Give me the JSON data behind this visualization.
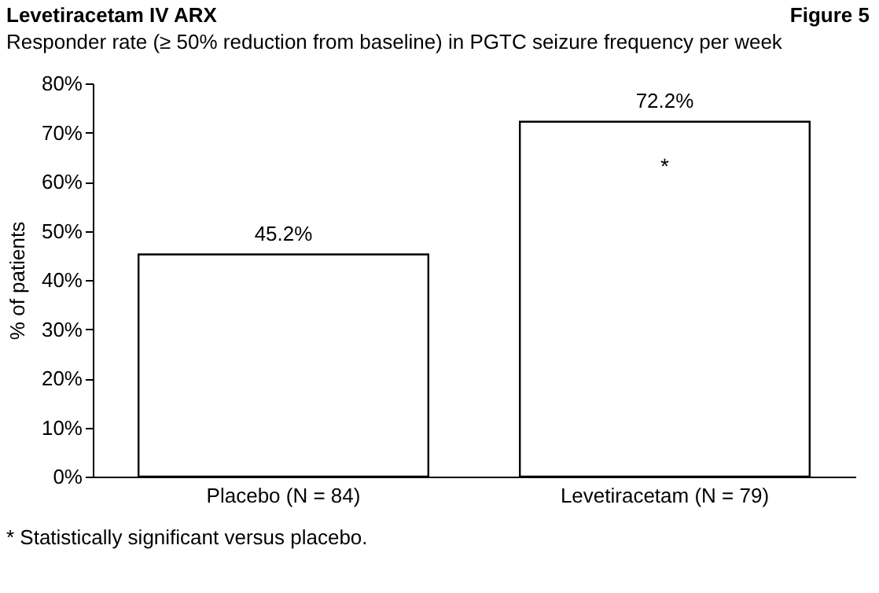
{
  "chart_data": {
    "type": "bar",
    "title": "Levetiracetam IV ARX",
    "subtitle": "Responder rate (≥ 50% reduction from baseline) in PGTC seizure frequency per week",
    "ylabel": "% of patients",
    "categories": [
      "Placebo (N = 84)",
      "Levetiracetam (N = 79)"
    ],
    "values": [
      45.2,
      72.2
    ],
    "color": "#ffffff",
    "value_labels": [
      "45.2%",
      "72.2%"
    ],
    "ylim": [
      0,
      80
    ],
    "yticks": [
      {
        "value": 0,
        "label": "0%"
      },
      {
        "value": 10,
        "label": "10%"
      },
      {
        "value": 20,
        "label": "20%"
      },
      {
        "value": 30,
        "label": "30%"
      },
      {
        "value": 40,
        "label": "40%"
      },
      {
        "value": 50,
        "label": "50%"
      },
      {
        "value": 60,
        "label": "60%"
      },
      {
        "value": 70,
        "label": "70%"
      },
      {
        "value": 80,
        "label": "80%"
      }
    ],
    "grid": false,
    "annotations": [
      "Figure 5",
      "* Statistically significant versus placebo.",
      {
        "text": "*",
        "x": "Levetiracetam (N = 79)",
        "y": 72.2
      }
    ]
  }
}
